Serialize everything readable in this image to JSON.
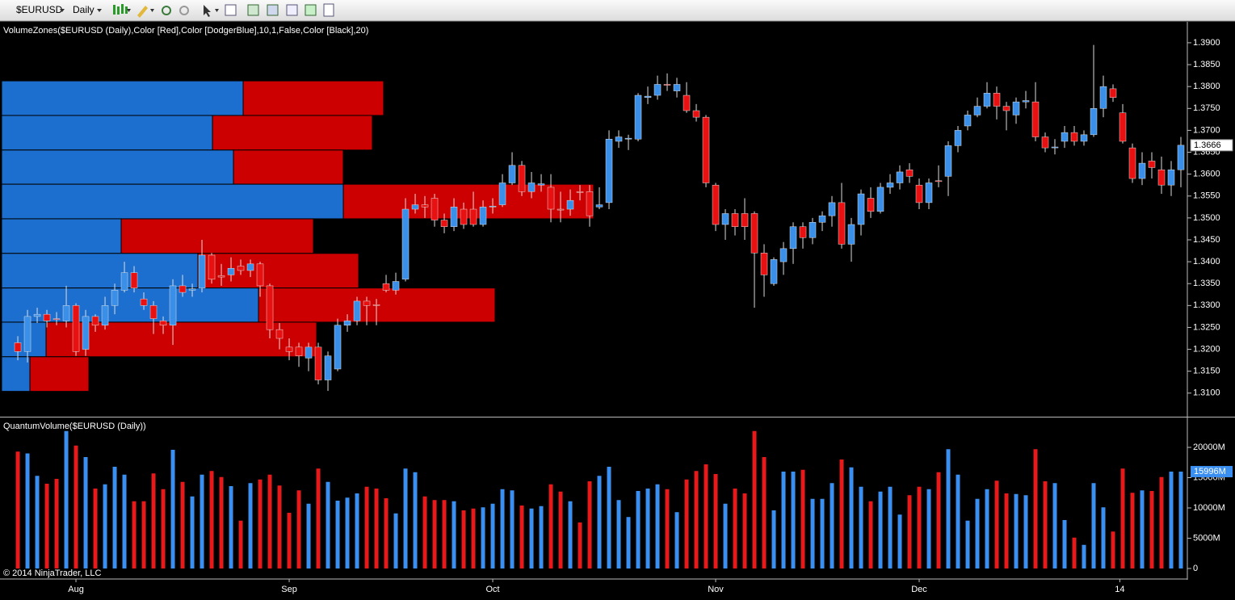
{
  "toolbar": {
    "symbol": "$EURUSD",
    "interval": "Daily"
  },
  "copyright": "© 2014 NinjaTrader, LLC",
  "chart_data": [
    {
      "type": "candlestick",
      "title": "VolumeZones($EURUSD (Daily),Color [Red],Color [DodgerBlue],10,1,False,Color [Black],20)",
      "xlim": [
        -1.67,
        120.5
      ],
      "ylim": [
        1.3048,
        1.3946
      ],
      "yticks": [
        {
          "value": 1.31,
          "label": "1.3100"
        },
        {
          "value": 1.315,
          "label": "1.3150"
        },
        {
          "value": 1.32,
          "label": "1.3200"
        },
        {
          "value": 1.325,
          "label": "1.3250"
        },
        {
          "value": 1.33,
          "label": "1.3300"
        },
        {
          "value": 1.335,
          "label": "1.3350"
        },
        {
          "value": 1.34,
          "label": "1.3400"
        },
        {
          "value": 1.345,
          "label": "1.3450"
        },
        {
          "value": 1.35,
          "label": "1.3500"
        },
        {
          "value": 1.355,
          "label": "1.3550"
        },
        {
          "value": 1.36,
          "label": "1.3600"
        },
        {
          "value": 1.365,
          "label": "1.3650"
        },
        {
          "value": 1.37,
          "label": "1.3700"
        },
        {
          "value": 1.375,
          "label": "1.3750"
        },
        {
          "value": 1.38,
          "label": "1.3800"
        },
        {
          "value": 1.385,
          "label": "1.3850"
        },
        {
          "value": 1.39,
          "label": "1.3900"
        }
      ],
      "up_color": "#3a8fe8",
      "down_color": "#e81010",
      "last_label": "1.3666",
      "open": [
        1.3215,
        1.3195,
        1.3275,
        1.328,
        1.327,
        1.3265,
        1.33,
        1.32,
        1.3275,
        1.3255,
        1.33,
        1.3335,
        1.3375,
        1.3315,
        1.33,
        1.3265,
        1.3255,
        1.3345,
        1.3335,
        1.334,
        1.3415,
        1.3368,
        1.337,
        1.339,
        1.338,
        1.3395,
        1.3345,
        1.3245,
        1.3205,
        1.3205,
        1.318,
        1.3205,
        1.313,
        1.3155,
        1.3255,
        1.3265,
        1.331,
        1.3302,
        1.335,
        1.3335,
        1.336,
        1.352,
        1.353,
        1.3545,
        1.3495,
        1.348,
        1.352,
        1.352,
        1.3485,
        1.3525,
        1.353,
        1.358,
        1.362,
        1.356,
        1.3575,
        1.357,
        1.352,
        1.352,
        1.356,
        1.356,
        1.3525,
        1.3535,
        1.3675,
        1.368,
        1.368,
        1.3775,
        1.378,
        1.3805,
        1.379,
        1.378,
        1.3745,
        1.373,
        1.3575,
        1.3485,
        1.351,
        1.351,
        1.351,
        1.342,
        1.335,
        1.34,
        1.343,
        1.348,
        1.3455,
        1.349,
        1.3505,
        1.3535,
        1.344,
        1.3485,
        1.3545,
        1.3515,
        1.357,
        1.358,
        1.361,
        1.3575,
        1.3535,
        1.3585,
        1.3595,
        1.3665,
        1.371,
        1.3735,
        1.3755,
        1.3785,
        1.3755,
        1.3735,
        1.3765,
        1.3765,
        1.3685,
        1.366,
        1.3675,
        1.3695,
        1.3675,
        1.369,
        1.375,
        1.3795,
        1.374,
        1.366,
        1.359,
        1.363,
        1.361,
        1.3575,
        1.361
      ],
      "high": [
        1.323,
        1.329,
        1.3295,
        1.329,
        1.3285,
        1.3345,
        1.3305,
        1.329,
        1.328,
        1.332,
        1.335,
        1.34,
        1.339,
        1.333,
        1.331,
        1.3275,
        1.336,
        1.337,
        1.335,
        1.345,
        1.342,
        1.3395,
        1.341,
        1.3405,
        1.3405,
        1.34,
        1.335,
        1.326,
        1.3225,
        1.3215,
        1.3215,
        1.3215,
        1.3195,
        1.327,
        1.328,
        1.332,
        1.332,
        1.3315,
        1.337,
        1.3375,
        1.3545,
        1.3555,
        1.355,
        1.3555,
        1.351,
        1.3545,
        1.3535,
        1.356,
        1.354,
        1.3545,
        1.36,
        1.365,
        1.363,
        1.3605,
        1.36,
        1.36,
        1.356,
        1.3565,
        1.3575,
        1.3575,
        1.357,
        1.37,
        1.37,
        1.369,
        1.3785,
        1.38,
        1.3825,
        1.383,
        1.382,
        1.381,
        1.376,
        1.3735,
        1.358,
        1.352,
        1.352,
        1.3545,
        1.3515,
        1.344,
        1.341,
        1.3445,
        1.349,
        1.349,
        1.35,
        1.3515,
        1.355,
        1.358,
        1.35,
        1.3565,
        1.357,
        1.358,
        1.36,
        1.362,
        1.3625,
        1.359,
        1.359,
        1.362,
        1.3675,
        1.371,
        1.3745,
        1.3775,
        1.381,
        1.38,
        1.3765,
        1.3775,
        1.379,
        1.381,
        1.3695,
        1.368,
        1.371,
        1.371,
        1.37,
        1.3895,
        1.3825,
        1.3805,
        1.376,
        1.367,
        1.365,
        1.365,
        1.364,
        1.363,
        1.3685
      ],
      "low": [
        1.3175,
        1.317,
        1.326,
        1.325,
        1.3255,
        1.325,
        1.3185,
        1.3185,
        1.324,
        1.3245,
        1.328,
        1.333,
        1.333,
        1.329,
        1.3235,
        1.3235,
        1.321,
        1.332,
        1.332,
        1.333,
        1.335,
        1.3345,
        1.3355,
        1.337,
        1.3365,
        1.332,
        1.3225,
        1.32,
        1.3175,
        1.316,
        1.315,
        1.312,
        1.3105,
        1.315,
        1.324,
        1.3255,
        1.3255,
        1.3255,
        1.333,
        1.3325,
        1.3355,
        1.351,
        1.35,
        1.348,
        1.3465,
        1.347,
        1.3475,
        1.348,
        1.348,
        1.351,
        1.3525,
        1.3575,
        1.355,
        1.3545,
        1.356,
        1.349,
        1.349,
        1.3505,
        1.354,
        1.348,
        1.352,
        1.352,
        1.366,
        1.3655,
        1.3675,
        1.376,
        1.377,
        1.379,
        1.3775,
        1.374,
        1.372,
        1.357,
        1.347,
        1.345,
        1.346,
        1.345,
        1.3295,
        1.332,
        1.3345,
        1.337,
        1.3395,
        1.343,
        1.344,
        1.347,
        1.348,
        1.343,
        1.34,
        1.346,
        1.35,
        1.351,
        1.3555,
        1.3565,
        1.358,
        1.352,
        1.352,
        1.357,
        1.355,
        1.365,
        1.37,
        1.373,
        1.375,
        1.3725,
        1.37,
        1.3715,
        1.375,
        1.3675,
        1.365,
        1.3645,
        1.366,
        1.3665,
        1.3665,
        1.3685,
        1.373,
        1.3765,
        1.367,
        1.358,
        1.3575,
        1.359,
        1.3555,
        1.355,
        1.357
      ],
      "close": [
        1.3195,
        1.3275,
        1.328,
        1.3265,
        1.3268,
        1.33,
        1.3195,
        1.3275,
        1.3255,
        1.33,
        1.3335,
        1.3375,
        1.334,
        1.33,
        1.327,
        1.3255,
        1.3345,
        1.333,
        1.3338,
        1.3415,
        1.336,
        1.3365,
        1.3385,
        1.338,
        1.3395,
        1.3345,
        1.3245,
        1.3225,
        1.3195,
        1.3185,
        1.3205,
        1.313,
        1.3185,
        1.3255,
        1.3265,
        1.331,
        1.33,
        1.33,
        1.3335,
        1.3355,
        1.352,
        1.353,
        1.3525,
        1.3495,
        1.348,
        1.3525,
        1.3485,
        1.3485,
        1.3525,
        1.3527,
        1.358,
        1.362,
        1.356,
        1.358,
        1.3578,
        1.352,
        1.3518,
        1.354,
        1.3558,
        1.3505,
        1.353,
        1.368,
        1.3685,
        1.3682,
        1.378,
        1.3778,
        1.3805,
        1.3803,
        1.3805,
        1.3745,
        1.373,
        1.358,
        1.3485,
        1.351,
        1.348,
        1.348,
        1.342,
        1.337,
        1.3405,
        1.343,
        1.348,
        1.3455,
        1.349,
        1.3505,
        1.3535,
        1.344,
        1.3485,
        1.3555,
        1.3515,
        1.357,
        1.358,
        1.3605,
        1.3595,
        1.3535,
        1.358,
        1.3583,
        1.3665,
        1.37,
        1.3735,
        1.3755,
        1.3785,
        1.3755,
        1.3745,
        1.3765,
        1.3768,
        1.3685,
        1.366,
        1.3662,
        1.3695,
        1.3675,
        1.369,
        1.375,
        1.38,
        1.3775,
        1.3675,
        1.359,
        1.3625,
        1.3615,
        1.3575,
        1.361,
        1.3666
      ],
      "zones": {
        "bounds": [
          1.3813,
          1.3734,
          1.3655,
          1.3577,
          1.3498,
          1.3419,
          1.334,
          1.3262,
          1.3183,
          1.3104
        ],
        "up": [
          299,
          261,
          287,
          423,
          148,
          243,
          318,
          55,
          35
        ],
        "down": [
          174,
          198,
          136,
          310,
          238,
          199,
          293,
          335,
          73
        ],
        "up_color": "#1c6fce",
        "down_color": "#cc0000"
      }
    },
    {
      "type": "bar",
      "title": "QuantumVolume($EURUSD (Daily))",
      "xlim": [
        -1.67,
        120.5
      ],
      "ylim": [
        -1470,
        24800
      ],
      "yticks": [
        0,
        {
          "value": 5000,
          "label": "5000M"
        },
        {
          "value": 10000,
          "label": "10000M"
        },
        {
          "value": 15000,
          "label": "15000M"
        },
        {
          "value": 20000,
          "label": "20000M"
        }
      ],
      "xticks": [
        {
          "value": 6,
          "label": "Aug"
        },
        {
          "value": 28,
          "label": "Sep"
        },
        {
          "value": 49,
          "label": "Oct"
        },
        {
          "value": 72,
          "label": "Nov"
        },
        {
          "value": 93,
          "label": "Dec"
        },
        {
          "value": 113.7,
          "label": "14"
        }
      ],
      "up_color": "#3a8ff0",
      "down_color": "#e61a1a",
      "last_label": "15996M",
      "values": [
        19300,
        19000,
        15300,
        14000,
        14800,
        22700,
        20300,
        18400,
        13200,
        13900,
        16800,
        15500,
        11100,
        11100,
        15700,
        13100,
        19600,
        14300,
        11900,
        15500,
        16100,
        15100,
        13600,
        7900,
        14100,
        14700,
        15500,
        13700,
        9200,
        12900,
        10700,
        16500,
        14300,
        11200,
        11700,
        12400,
        13500,
        13200,
        11600,
        9100,
        16500,
        15900,
        11900,
        11300,
        11300,
        11100,
        9600,
        9900,
        10100,
        10700,
        13100,
        12900,
        10400,
        9900,
        10300,
        13900,
        12700,
        11100,
        7600,
        14400,
        15300,
        16800,
        11300,
        8500,
        12800,
        13200,
        13900,
        13100,
        9300,
        14700,
        16100,
        17200,
        15600,
        10700,
        13200,
        12400,
        22700,
        18400,
        9600,
        16000,
        16000,
        16300,
        11500,
        11500,
        14100,
        18000,
        16700,
        13500,
        11100,
        12700,
        13500,
        8900,
        12100,
        13500,
        13100,
        15900,
        19700,
        15500,
        7900,
        11500,
        13100,
        14500,
        12400,
        12300,
        12100,
        19700,
        14400,
        14100,
        8000,
        5100,
        3900,
        14100,
        10100,
        6100,
        16500,
        12500,
        12900,
        12800,
        15100,
        16000,
        15996
      ]
    }
  ]
}
